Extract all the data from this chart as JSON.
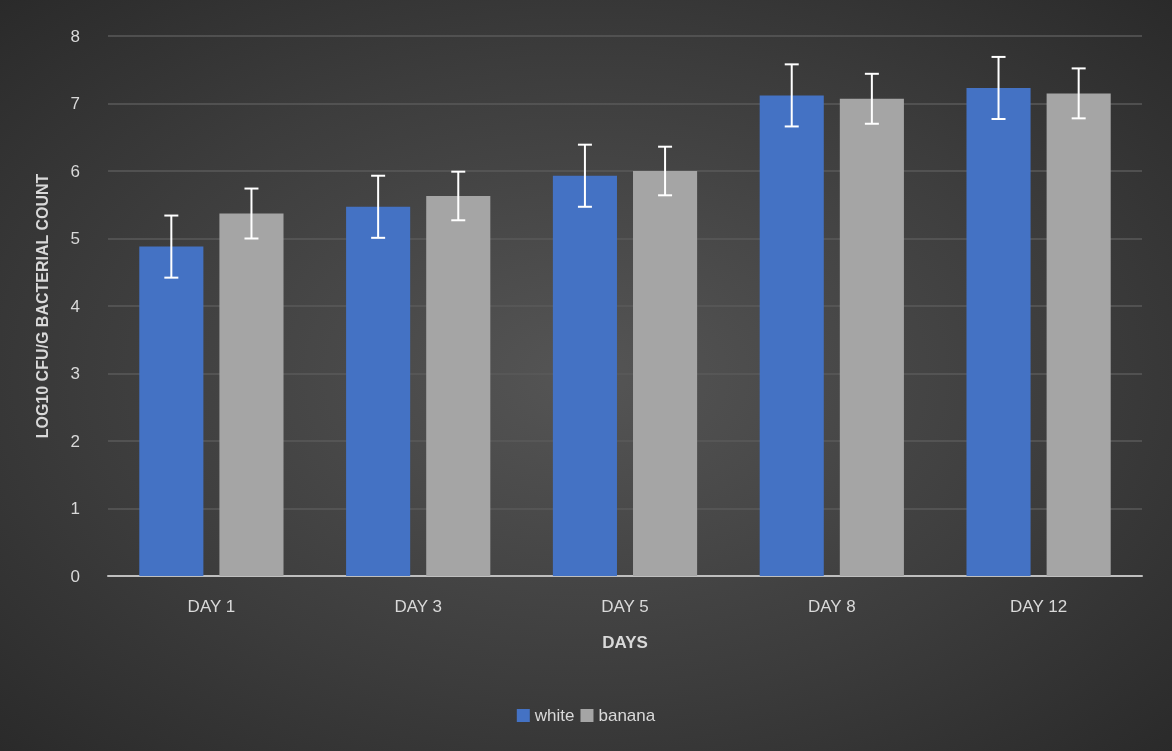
{
  "chart_data": {
    "type": "bar",
    "xlabel": "DAYS",
    "ylabel": "LOG10 CFU/G BACTERIAL COUNT",
    "categories": [
      "DAY 1",
      "DAY 3",
      "DAY 5",
      "DAY 8",
      "DAY 12"
    ],
    "series": [
      {
        "name": "white",
        "color": "#4472c4",
        "values": [
          4.88,
          5.47,
          5.93,
          7.12,
          7.23
        ],
        "errors": [
          0.46,
          0.46,
          0.46,
          0.46,
          0.46
        ]
      },
      {
        "name": "banana",
        "color": "#a5a5a5",
        "values": [
          5.37,
          5.63,
          6.0,
          7.07,
          7.15
        ],
        "errors": [
          0.37,
          0.36,
          0.36,
          0.37,
          0.37
        ]
      }
    ],
    "ylim": [
      0,
      8
    ],
    "yticks": [
      0,
      1,
      2,
      3,
      4,
      5,
      6,
      7,
      8
    ],
    "grid": "y",
    "legend": "bottom"
  }
}
